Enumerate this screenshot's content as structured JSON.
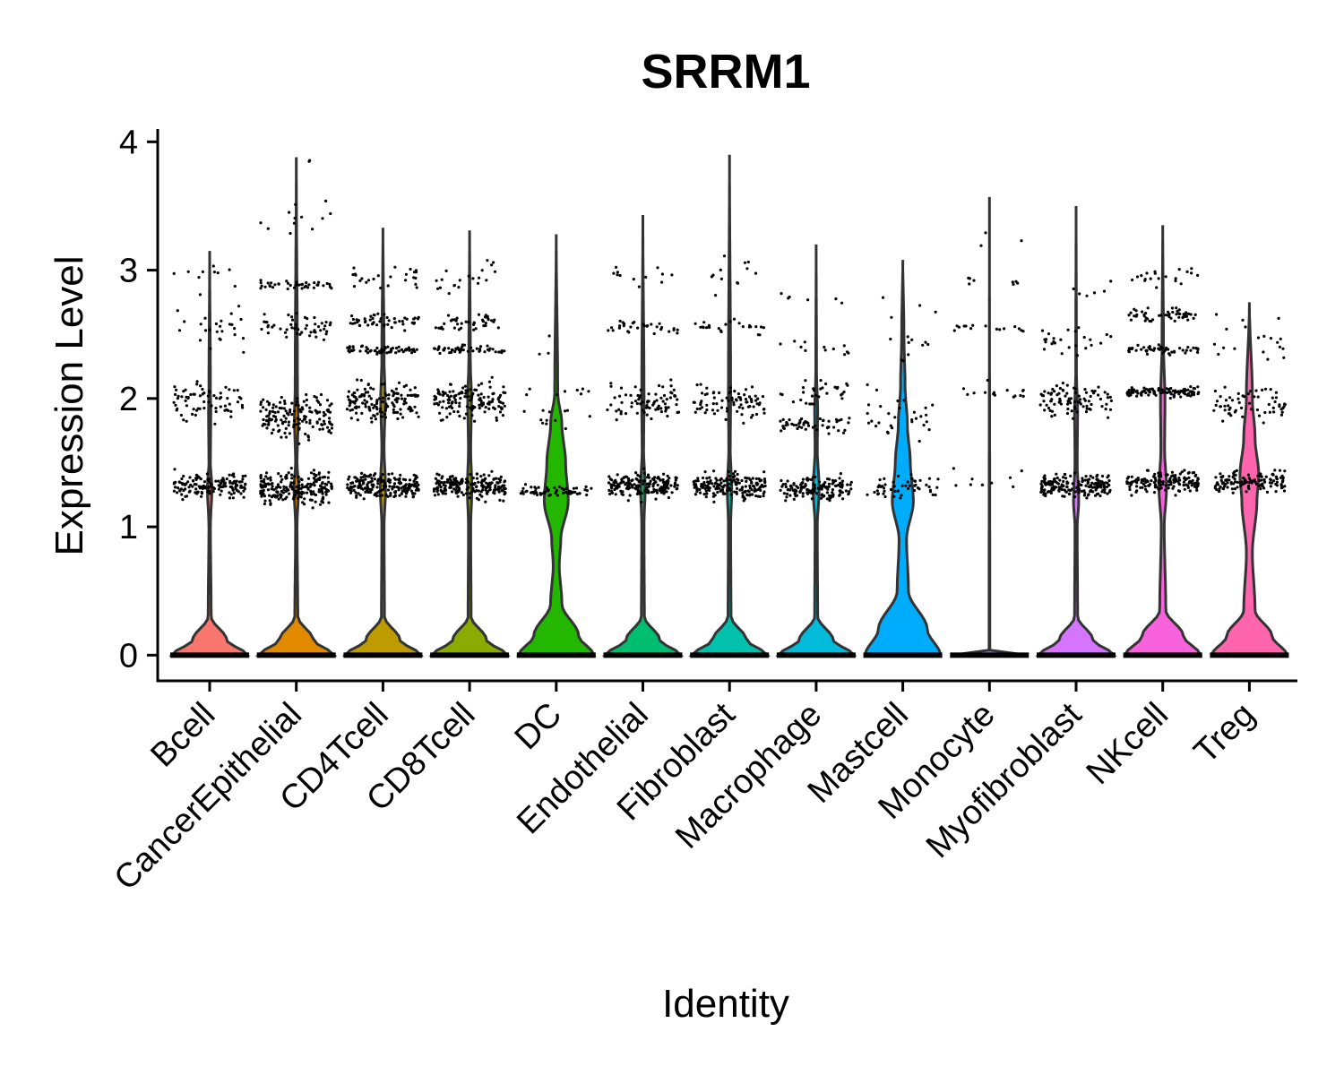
{
  "chart_data": {
    "type": "violin",
    "title": "SRRM1",
    "xlabel": "Identity",
    "ylabel": "Expression Level",
    "ylim": [
      -0.2,
      4.1
    ],
    "yticks": [
      0,
      1,
      2,
      3,
      4
    ],
    "grid": false,
    "legend": "none",
    "categories": [
      "Bcell",
      "CancerEpithelial",
      "CD4Tcell",
      "CD8Tcell",
      "DC",
      "Endothelial",
      "Fibroblast",
      "Macrophage",
      "Mastcell",
      "Monocyte",
      "Myofibroblast",
      "NKcell",
      "Treg"
    ],
    "colors": [
      "#F8766D",
      "#E18A00",
      "#BE9C00",
      "#8CAB00",
      "#24B700",
      "#00BE70",
      "#00C1AB",
      "#00BBDA",
      "#00ACFC",
      "#8B93FF",
      "#D575FE",
      "#F962DD",
      "#FF65AC"
    ],
    "max_values": [
      3.15,
      3.88,
      3.33,
      3.31,
      3.28,
      3.43,
      3.9,
      3.2,
      3.08,
      3.57,
      3.5,
      3.35,
      2.75
    ],
    "density_profiles": [
      [
        [
          0,
          1.0
        ],
        [
          0.12,
          0.45
        ],
        [
          0.3,
          0.04
        ],
        [
          1.0,
          0.02
        ],
        [
          1.3,
          0.06
        ],
        [
          1.5,
          0.02
        ],
        [
          1.9,
          0.03
        ],
        [
          2.05,
          0.02
        ],
        [
          3.15,
          0
        ]
      ],
      [
        [
          0,
          1.0
        ],
        [
          0.12,
          0.45
        ],
        [
          0.3,
          0.04
        ],
        [
          1.0,
          0.02
        ],
        [
          1.3,
          0.06
        ],
        [
          1.5,
          0.02
        ],
        [
          1.85,
          0.05
        ],
        [
          2.1,
          0.03
        ],
        [
          3.88,
          0
        ]
      ],
      [
        [
          0,
          1.0
        ],
        [
          0.12,
          0.45
        ],
        [
          0.3,
          0.04
        ],
        [
          1.0,
          0.03
        ],
        [
          1.3,
          0.07
        ],
        [
          1.6,
          0.03
        ],
        [
          2.0,
          0.06
        ],
        [
          2.3,
          0.03
        ],
        [
          3.33,
          0
        ]
      ],
      [
        [
          0,
          1.0
        ],
        [
          0.12,
          0.45
        ],
        [
          0.3,
          0.04
        ],
        [
          1.0,
          0.03
        ],
        [
          1.3,
          0.06
        ],
        [
          1.6,
          0.03
        ],
        [
          2.0,
          0.05
        ],
        [
          2.3,
          0.02
        ],
        [
          3.31,
          0
        ]
      ],
      [
        [
          0,
          1.0
        ],
        [
          0.15,
          0.6
        ],
        [
          0.4,
          0.15
        ],
        [
          0.7,
          0.08
        ],
        [
          0.9,
          0.12
        ],
        [
          1.2,
          0.32
        ],
        [
          1.5,
          0.25
        ],
        [
          1.8,
          0.15
        ],
        [
          2.05,
          0.04
        ],
        [
          3.28,
          0
        ]
      ],
      [
        [
          0,
          1.0
        ],
        [
          0.12,
          0.45
        ],
        [
          0.3,
          0.04
        ],
        [
          1.0,
          0.03
        ],
        [
          1.3,
          0.06
        ],
        [
          1.6,
          0.02
        ],
        [
          2.0,
          0.03
        ],
        [
          3.43,
          0
        ]
      ],
      [
        [
          0,
          1.0
        ],
        [
          0.12,
          0.45
        ],
        [
          0.3,
          0.04
        ],
        [
          1.0,
          0.03
        ],
        [
          1.3,
          0.06
        ],
        [
          1.6,
          0.02
        ],
        [
          2.0,
          0.03
        ],
        [
          3.9,
          0
        ]
      ],
      [
        [
          0,
          1.0
        ],
        [
          0.12,
          0.45
        ],
        [
          0.3,
          0.04
        ],
        [
          1.0,
          0.03
        ],
        [
          1.3,
          0.08
        ],
        [
          1.6,
          0.03
        ],
        [
          1.9,
          0.04
        ],
        [
          2.2,
          0.01
        ],
        [
          3.2,
          0
        ]
      ],
      [
        [
          0,
          1.0
        ],
        [
          0.2,
          0.65
        ],
        [
          0.5,
          0.15
        ],
        [
          0.9,
          0.1
        ],
        [
          1.2,
          0.28
        ],
        [
          1.5,
          0.2
        ],
        [
          1.8,
          0.12
        ],
        [
          2.1,
          0.06
        ],
        [
          2.5,
          0.03
        ],
        [
          3.08,
          0
        ]
      ],
      [
        [
          0,
          1.0
        ],
        [
          0.02,
          1.0
        ],
        [
          0.04,
          0.01
        ],
        [
          3.57,
          0
        ]
      ],
      [
        [
          0,
          1.0
        ],
        [
          0.12,
          0.45
        ],
        [
          0.3,
          0.04
        ],
        [
          1.0,
          0.03
        ],
        [
          1.2,
          0.07
        ],
        [
          1.5,
          0.03
        ],
        [
          1.9,
          0.04
        ],
        [
          2.2,
          0.01
        ],
        [
          3.5,
          0
        ]
      ],
      [
        [
          0,
          1.0
        ],
        [
          0.15,
          0.55
        ],
        [
          0.35,
          0.08
        ],
        [
          1.0,
          0.04
        ],
        [
          1.3,
          0.1
        ],
        [
          1.6,
          0.05
        ],
        [
          2.0,
          0.06
        ],
        [
          2.4,
          0.02
        ],
        [
          3.35,
          0
        ]
      ],
      [
        [
          0,
          1.0
        ],
        [
          0.15,
          0.6
        ],
        [
          0.35,
          0.15
        ],
        [
          0.8,
          0.08
        ],
        [
          1.2,
          0.2
        ],
        [
          1.4,
          0.25
        ],
        [
          1.7,
          0.15
        ],
        [
          2.0,
          0.08
        ],
        [
          2.75,
          0
        ]
      ]
    ],
    "point_bands": [
      [
        [
          1.32,
          0.14,
          150
        ],
        [
          1.98,
          0.2,
          70
        ],
        [
          2.55,
          0.25,
          25
        ],
        [
          2.95,
          0.25,
          10
        ]
      ],
      [
        [
          1.3,
          0.18,
          220
        ],
        [
          1.85,
          0.25,
          150
        ],
        [
          2.55,
          0.15,
          50
        ],
        [
          2.88,
          0.05,
          40
        ],
        [
          3.4,
          0.2,
          12
        ],
        [
          3.85,
          0.04,
          2
        ]
      ],
      [
        [
          1.32,
          0.14,
          200
        ],
        [
          1.98,
          0.2,
          150
        ],
        [
          2.38,
          0.05,
          60
        ],
        [
          2.6,
          0.1,
          50
        ],
        [
          2.95,
          0.15,
          25
        ]
      ],
      [
        [
          1.32,
          0.14,
          200
        ],
        [
          1.98,
          0.2,
          140
        ],
        [
          2.38,
          0.05,
          50
        ],
        [
          2.6,
          0.1,
          40
        ],
        [
          2.95,
          0.2,
          20
        ]
      ],
      [
        [
          1.28,
          0.06,
          60
        ],
        [
          1.85,
          0.12,
          12
        ],
        [
          2.05,
          0.08,
          8
        ],
        [
          2.4,
          0.2,
          3
        ]
      ],
      [
        [
          1.32,
          0.14,
          180
        ],
        [
          1.98,
          0.2,
          80
        ],
        [
          2.55,
          0.1,
          30
        ],
        [
          2.95,
          0.15,
          12
        ]
      ],
      [
        [
          1.32,
          0.14,
          180
        ],
        [
          1.98,
          0.2,
          80
        ],
        [
          2.55,
          0.1,
          25
        ],
        [
          2.95,
          0.3,
          12
        ]
      ],
      [
        [
          1.3,
          0.14,
          150
        ],
        [
          1.8,
          0.1,
          50
        ],
        [
          2.05,
          0.15,
          30
        ],
        [
          2.4,
          0.1,
          12
        ],
        [
          2.75,
          0.15,
          6
        ]
      ],
      [
        [
          1.3,
          0.14,
          50
        ],
        [
          1.9,
          0.3,
          30
        ],
        [
          2.4,
          0.2,
          10
        ],
        [
          2.75,
          0.2,
          4
        ]
      ],
      [
        [
          1.35,
          0.12,
          10
        ],
        [
          2.05,
          0.1,
          15
        ],
        [
          2.55,
          0.05,
          15
        ],
        [
          2.9,
          0.1,
          8
        ],
        [
          3.25,
          0.15,
          3
        ]
      ],
      [
        [
          1.32,
          0.14,
          180
        ],
        [
          1.98,
          0.2,
          90
        ],
        [
          2.45,
          0.15,
          25
        ],
        [
          2.85,
          0.1,
          6
        ]
      ],
      [
        [
          1.35,
          0.12,
          150
        ],
        [
          2.05,
          0.05,
          100
        ],
        [
          2.38,
          0.05,
          50
        ],
        [
          2.65,
          0.08,
          50
        ],
        [
          2.95,
          0.15,
          20
        ]
      ],
      [
        [
          1.35,
          0.12,
          120
        ],
        [
          1.98,
          0.2,
          60
        ],
        [
          2.4,
          0.2,
          15
        ],
        [
          2.6,
          0.1,
          4
        ]
      ]
    ]
  }
}
